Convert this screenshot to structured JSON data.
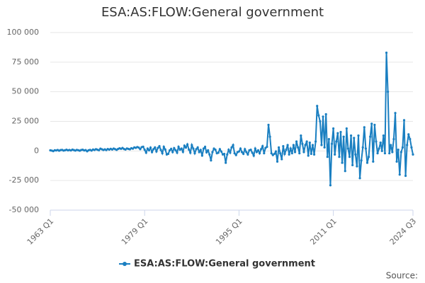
{
  "chart_data": {
    "type": "line",
    "title": "ESA:AS:FLOW:General government",
    "source": "Source:",
    "ylim": [
      -50000,
      100000
    ],
    "yticks": [
      {
        "value": -50000,
        "label": "-50 000"
      },
      {
        "value": -25000,
        "label": "-25 000"
      },
      0,
      {
        "value": 25000,
        "label": "25 000"
      },
      {
        "value": 50000,
        "label": "50 000"
      },
      {
        "value": 75000,
        "label": "75 000"
      },
      {
        "value": 100000,
        "label": "100 000"
      }
    ],
    "grid": true,
    "legend": "bottom",
    "categories": [
      "1963 Q1",
      null,
      null,
      null,
      null,
      null,
      null,
      null,
      null,
      null,
      null,
      null,
      null,
      null,
      null,
      null,
      null,
      null,
      null,
      null,
      null,
      null,
      null,
      null,
      null,
      null,
      null,
      null,
      null,
      null,
      null,
      null,
      null,
      null,
      null,
      null,
      null,
      null,
      null,
      null,
      null,
      null,
      null,
      null,
      null,
      null,
      null,
      null,
      null,
      null,
      null,
      null,
      null,
      null,
      null,
      null,
      null,
      null,
      null,
      null,
      null,
      null,
      null,
      null,
      "1979 Q1",
      null,
      null,
      null,
      null,
      null,
      null,
      null,
      null,
      null,
      null,
      null,
      null,
      null,
      null,
      null,
      null,
      null,
      null,
      null,
      null,
      null,
      null,
      null,
      null,
      null,
      null,
      null,
      null,
      null,
      null,
      null,
      null,
      null,
      null,
      null,
      null,
      null,
      null,
      null,
      null,
      null,
      null,
      null,
      null,
      null,
      null,
      null,
      null,
      null,
      null,
      null,
      null,
      null,
      null,
      null,
      null,
      null,
      null,
      null,
      null,
      null,
      null,
      null,
      "1995 Q1",
      null,
      null,
      null,
      null,
      null,
      null,
      null,
      null,
      null,
      null,
      null,
      null,
      null,
      null,
      null,
      null,
      null,
      null,
      null,
      null,
      null,
      null,
      null,
      null,
      null,
      null,
      null,
      null,
      null,
      null,
      null,
      null,
      null,
      null,
      null,
      null,
      null,
      null,
      null,
      null,
      null,
      null,
      null,
      null,
      null,
      null,
      null,
      null,
      null,
      null,
      null,
      null,
      null,
      null,
      null,
      null,
      null,
      null,
      null,
      null,
      null,
      null,
      null,
      "2011 Q1",
      null,
      null,
      null,
      null,
      null,
      null,
      null,
      null,
      null,
      null,
      null,
      null,
      null,
      null,
      null,
      null,
      null,
      null,
      null,
      null,
      null,
      null,
      null,
      null,
      null,
      null,
      null,
      null,
      null,
      null,
      null,
      null,
      null,
      null,
      null,
      null,
      null,
      null,
      null,
      null,
      null,
      null,
      null,
      null,
      null,
      null,
      null,
      null,
      null,
      null,
      null,
      null,
      null,
      "2024 Q3"
    ],
    "series": [
      {
        "name": "ESA:AS:FLOW:General government",
        "color": "#1a7fc1",
        "values": [
          500,
          300,
          -200,
          600,
          400,
          800,
          200,
          700,
          900,
          300,
          600,
          1000,
          500,
          800,
          400,
          1100,
          700,
          300,
          900,
          600,
          200,
          800,
          1000,
          400,
          700,
          -300,
          600,
          900,
          300,
          1200,
          800,
          1500,
          1000,
          600,
          1900,
          1400,
          800,
          1300,
          700,
          1600,
          1100,
          1800,
          1200,
          2000,
          1500,
          900,
          1700,
          2200,
          1800,
          2500,
          1600,
          1200,
          2100,
          1700,
          1400,
          2300,
          1900,
          3000,
          2600,
          3300,
          2800,
          1500,
          3200,
          3600,
          1000,
          -1500,
          2000,
          500,
          2800,
          -1000,
          1500,
          3000,
          -500,
          2500,
          4000,
          800,
          -2000,
          3500,
          1200,
          -3000,
          -2500,
          500,
          1800,
          -1000,
          2400,
          600,
          -1500,
          3500,
          1000,
          2000,
          -800,
          4500,
          2800,
          5500,
          1200,
          -1500,
          5000,
          2000,
          -2000,
          1500,
          3000,
          -1000,
          800,
          -4000,
          2000,
          3500,
          -1200,
          500,
          -3000,
          -8000,
          -1000,
          2000,
          1000,
          -2000,
          -1500,
          1500,
          -500,
          -3000,
          -2500,
          -10000,
          -3000,
          1000,
          -1500,
          3000,
          5000,
          -2000,
          -3500,
          -1000,
          -500,
          2000,
          -1000,
          -2500,
          1500,
          -1000,
          -3000,
          500,
          1000,
          -1500,
          -4000,
          2000,
          -1000,
          500,
          -2000,
          1500,
          4000,
          -2000,
          2500,
          3500,
          22000,
          12000,
          -2000,
          -3500,
          -2500,
          -500,
          -9000,
          3000,
          -2000,
          -7000,
          4000,
          -2500,
          1000,
          5000,
          -3000,
          2000,
          -2000,
          5000,
          -1000,
          8000,
          3000,
          -2000,
          13000,
          6000,
          -1000,
          5000,
          8000,
          -4000,
          7000,
          -2500,
          5000,
          -3000,
          8000,
          38000,
          30000,
          25000,
          5000,
          29000,
          3000,
          31000,
          -5000,
          10000,
          -29000,
          6000,
          19000,
          -3000,
          8000,
          15000,
          -5000,
          16000,
          -10000,
          12000,
          -17000,
          19000,
          2000,
          -5000,
          13000,
          -12000,
          11000,
          -3000,
          -13000,
          13000,
          -23000,
          -8000,
          3000,
          20000,
          2000,
          -10000,
          -5000,
          12000,
          23000,
          -9000,
          22000,
          8000,
          -2000,
          2000,
          7000,
          0,
          13000,
          -2000,
          83000,
          50000,
          -2000,
          5000,
          -1000,
          10000,
          32000,
          -9000,
          1000,
          -20000,
          -1000,
          3000,
          26000,
          -21000,
          5000,
          14000,
          10000,
          3000,
          -3000
        ]
      }
    ]
  }
}
